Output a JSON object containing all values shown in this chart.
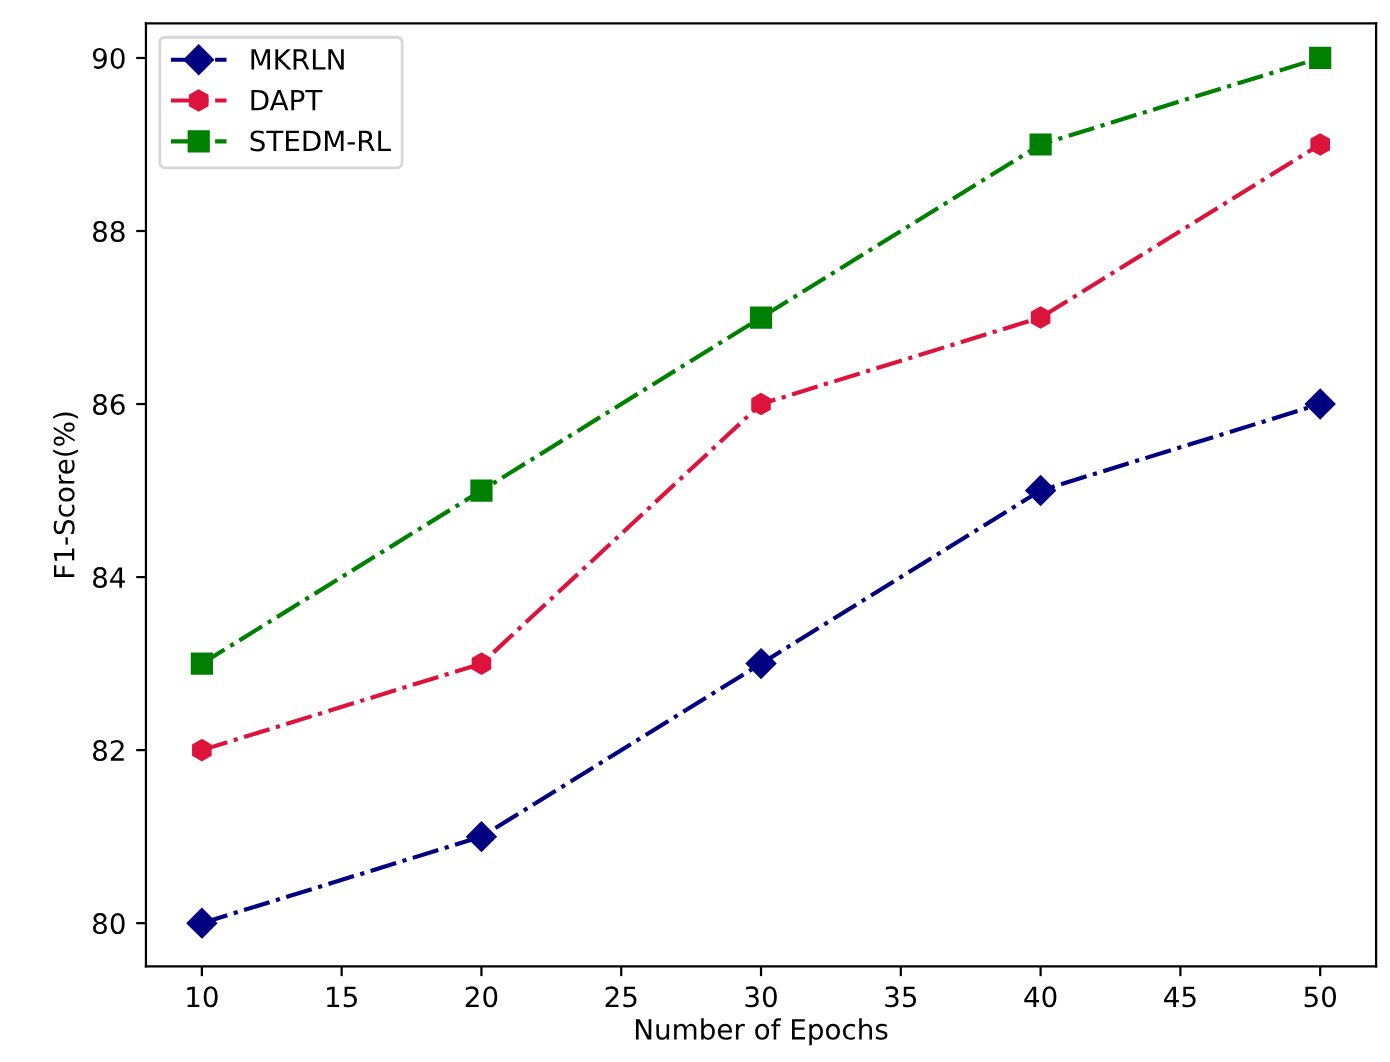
{
  "chart_data": {
    "type": "line",
    "xlabel": "Number of Epochs",
    "ylabel": "F1-Score(%)",
    "x": [
      10,
      20,
      30,
      40,
      50
    ],
    "series": [
      {
        "name": "MKRLN",
        "color": "#000080",
        "marker": "diamond",
        "values": [
          80,
          81,
          83,
          85,
          86
        ]
      },
      {
        "name": "DAPT",
        "color": "#dc143c",
        "marker": "circle",
        "values": [
          82,
          83,
          86,
          87,
          89
        ]
      },
      {
        "name": "STEDM-RL",
        "color": "#008000",
        "marker": "square",
        "values": [
          83,
          85,
          87,
          89,
          90
        ]
      }
    ],
    "line_style": "dashed",
    "xlim": [
      8,
      52
    ],
    "ylim": [
      79.5,
      90.4
    ],
    "xticks": [
      10,
      15,
      20,
      25,
      30,
      35,
      40,
      45,
      50
    ],
    "yticks": [
      80,
      82,
      84,
      86,
      88,
      90
    ],
    "grid": false,
    "legend": "top left"
  }
}
